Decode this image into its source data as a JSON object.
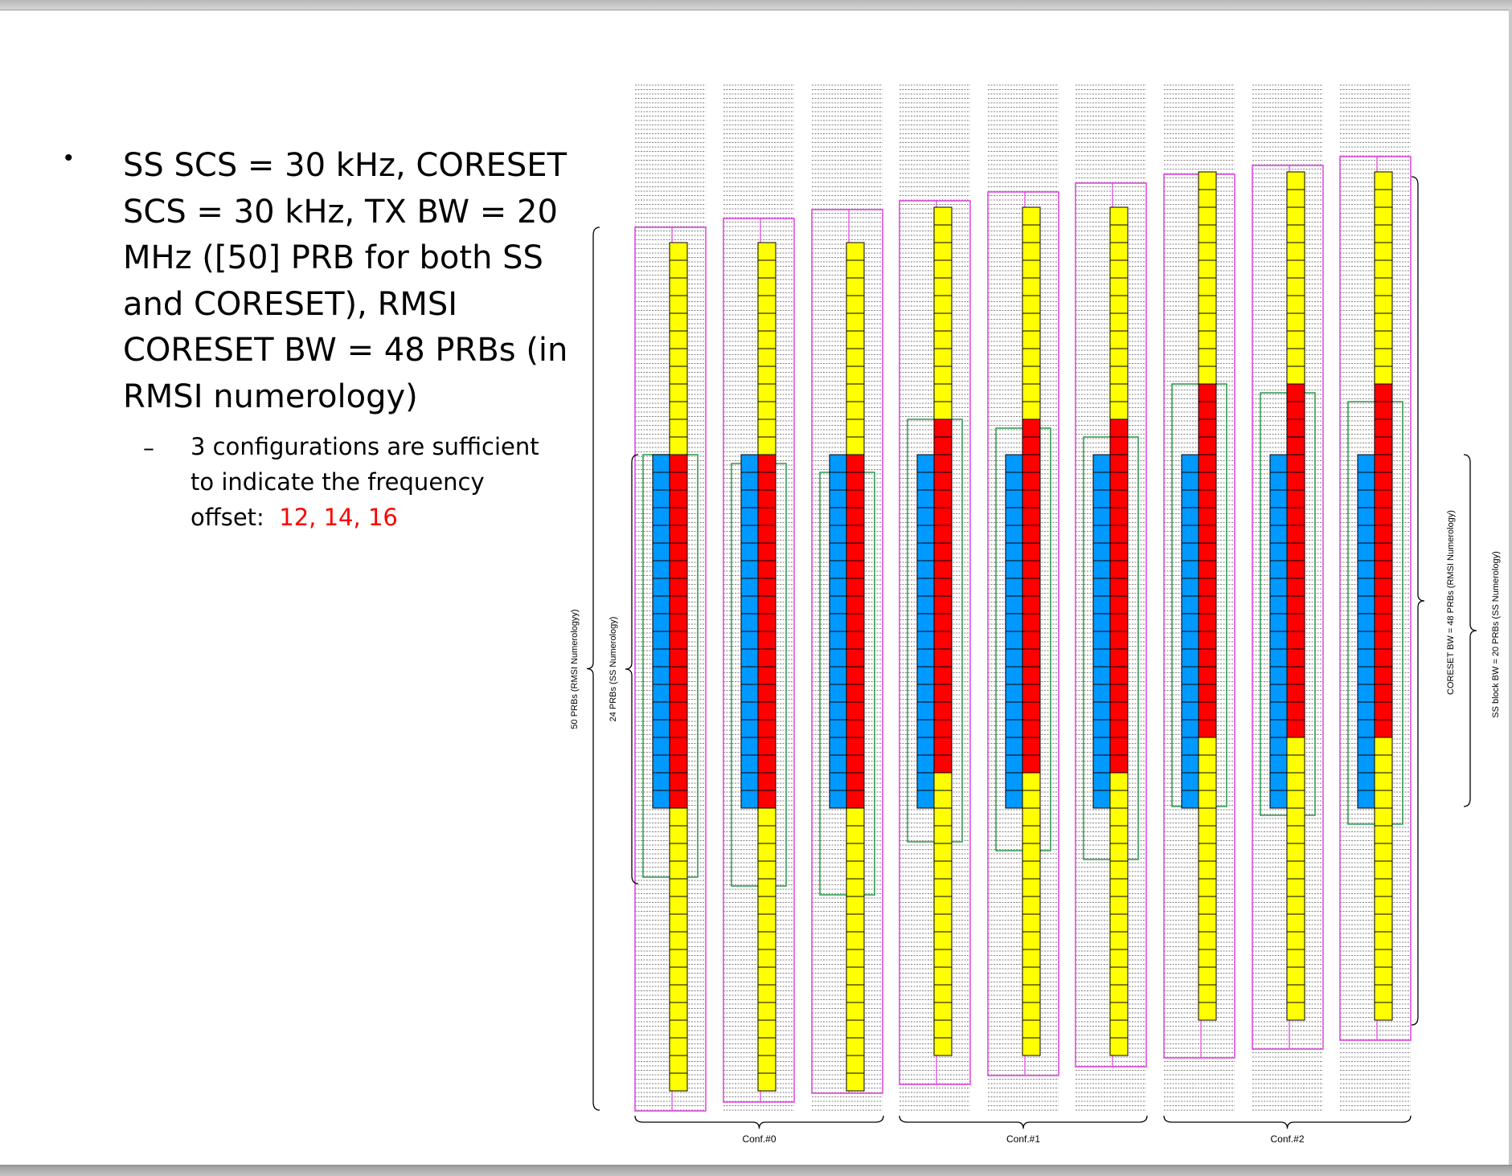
{
  "slide": {
    "bullet_text": "SS SCS = 30 kHz, CORESET SCS = 30 kHz, TX BW = 20 MHz ([50] PRB for both SS and CORESET), RMSI CORESET BW = 48 PRBs (in RMSI numerology)",
    "sub_text": "3 configurations are sufficient to indicate the frequency offset:",
    "offsets_text": "12, 14, 16"
  },
  "diagram": {
    "labels": {
      "left_outer": "50 PRBs (RMSI Numerologyy)",
      "left_inner": "24 PRBs (SS Numerology)",
      "right_inner": "CORESET BW = 48 PRBs (RMSI Numerology)",
      "right_outer": "SS block BW = 20 PRBs (SS Numerology)"
    },
    "groups": [
      {
        "label": "Conf.#0",
        "offset_prb": 12
      },
      {
        "label": "Conf.#1",
        "offset_prb": 14
      },
      {
        "label": "Conf.#2",
        "offset_prb": 16
      }
    ],
    "colors": {
      "rmsi_coreset": "#ffff00",
      "overlap": "#ff0000",
      "ss_block": "#0099ff",
      "channel_box": "#e040e0",
      "ss_box": "#2a9a4a"
    }
  }
}
